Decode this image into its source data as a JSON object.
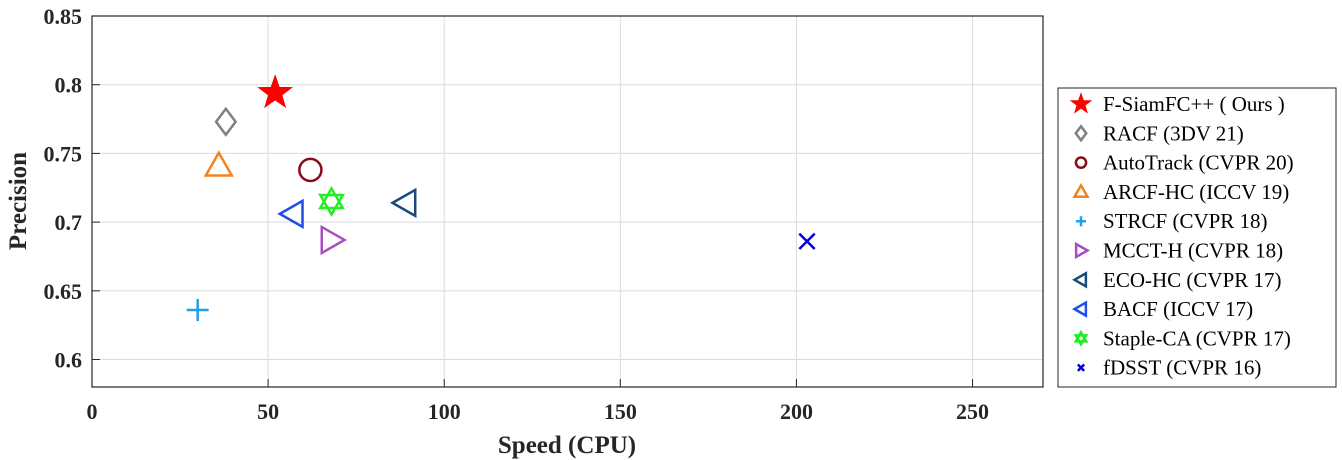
{
  "chart_data": {
    "type": "scatter",
    "title": "",
    "xlabel": "Speed (CPU)",
    "ylabel": "Precision",
    "xlim": [
      0,
      270
    ],
    "ylim": [
      0.58,
      0.85
    ],
    "xticks": [
      "0",
      "50",
      "100",
      "150",
      "200",
      "250"
    ],
    "yticks": [
      "0.6",
      "0.65",
      "0.7",
      "0.75",
      "0.8",
      "0.85"
    ],
    "grid": true,
    "legend_position": "right",
    "series": [
      {
        "name": "F-SiamFC++ ( Ours )",
        "x": 52,
        "y": 0.794,
        "marker": "star",
        "color": "#ff0000",
        "filled": true
      },
      {
        "name": "RACF (3DV 21)",
        "x": 38,
        "y": 0.773,
        "marker": "diamond",
        "color": "#808080",
        "filled": false
      },
      {
        "name": "AutoTrack (CVPR 20)",
        "x": 62,
        "y": 0.738,
        "marker": "circle",
        "color": "#8b0a1a",
        "filled": false
      },
      {
        "name": "ARCF-HC (ICCV 19)",
        "x": 36,
        "y": 0.741,
        "marker": "triangle-up",
        "color": "#f58220",
        "filled": false
      },
      {
        "name": "STRCF (CVPR 18)",
        "x": 30,
        "y": 0.636,
        "marker": "plus",
        "color": "#1fa0e8",
        "filled": false
      },
      {
        "name": "MCCT-H (CVPR 18)",
        "x": 68,
        "y": 0.687,
        "marker": "triangle-right",
        "color": "#a84ec2",
        "filled": false
      },
      {
        "name": "ECO-HC (CVPR 17)",
        "x": 89,
        "y": 0.714,
        "marker": "triangle-left",
        "color": "#1a4a7a",
        "filled": false
      },
      {
        "name": "BACF (ICCV 17)",
        "x": 57,
        "y": 0.706,
        "marker": "triangle-left",
        "color": "#1f4de8",
        "filled": false
      },
      {
        "name": "Staple-CA (CVPR 17)",
        "x": 68,
        "y": 0.715,
        "marker": "hexagram",
        "color": "#22ee22",
        "filled": false
      },
      {
        "name": "fDSST (CVPR 16)",
        "x": 203,
        "y": 0.686,
        "marker": "x",
        "color": "#0000dd",
        "filled": false
      }
    ]
  }
}
